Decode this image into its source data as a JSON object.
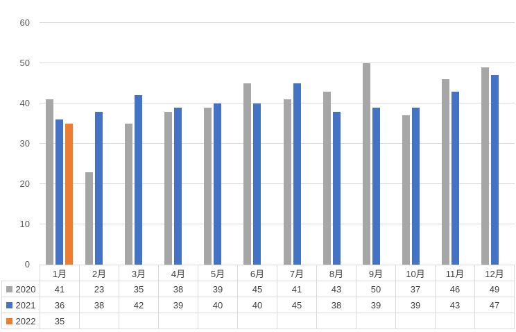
{
  "chart_data": {
    "type": "bar",
    "title": "",
    "xlabel": "",
    "ylabel": "",
    "categories": [
      "1月",
      "2月",
      "3月",
      "4月",
      "5月",
      "6月",
      "7月",
      "8月",
      "9月",
      "10月",
      "11月",
      "12月"
    ],
    "series": [
      {
        "name": "2020",
        "color": "#a6a6a6",
        "values": [
          41,
          23,
          35,
          38,
          39,
          45,
          41,
          43,
          50,
          37,
          46,
          49
        ]
      },
      {
        "name": "2021",
        "color": "#4472c4",
        "values": [
          36,
          38,
          42,
          39,
          40,
          40,
          45,
          38,
          39,
          39,
          43,
          47
        ]
      },
      {
        "name": "2022",
        "color": "#ed7d31",
        "values": [
          35,
          null,
          null,
          null,
          null,
          null,
          null,
          null,
          null,
          null,
          null,
          null
        ]
      }
    ],
    "ylim": [
      0,
      60
    ],
    "yticks": [
      0,
      10,
      20,
      30,
      40,
      50,
      60
    ],
    "grid": true,
    "legend_position": "data-table-left-column"
  },
  "styles": {
    "background": "#ffffff",
    "gridline_color": "#d9d9d9",
    "axis_text_color": "#595959",
    "table_border_color": "#d9d9d9",
    "table_text_color": "#404040"
  }
}
